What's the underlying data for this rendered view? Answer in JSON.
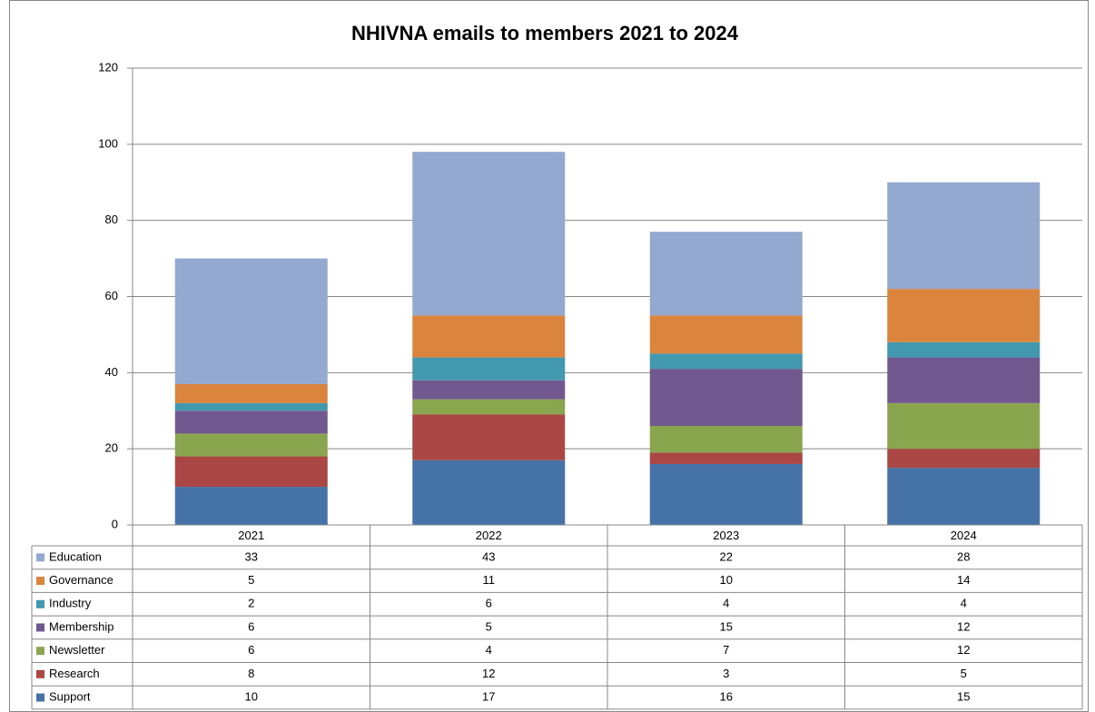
{
  "chart_data": {
    "type": "stacked_bar",
    "title": "NHIVNA emails to members 2021 to 2024",
    "categories": [
      "2021",
      "2022",
      "2023",
      "2024"
    ],
    "series": [
      {
        "name": "Support",
        "color": "#4572a7",
        "values": [
          10,
          17,
          16,
          15
        ]
      },
      {
        "name": "Research",
        "color": "#aa4643",
        "values": [
          8,
          12,
          3,
          5
        ]
      },
      {
        "name": "Newsletter",
        "color": "#89a54e",
        "values": [
          6,
          4,
          7,
          12
        ]
      },
      {
        "name": "Membership",
        "color": "#71588f",
        "values": [
          6,
          5,
          15,
          12
        ]
      },
      {
        "name": "Industry",
        "color": "#4198af",
        "values": [
          2,
          6,
          4,
          4
        ]
      },
      {
        "name": "Governance",
        "color": "#db843d",
        "values": [
          5,
          11,
          10,
          14
        ]
      },
      {
        "name": "Education",
        "color": "#93a9cf",
        "values": [
          33,
          43,
          22,
          28
        ]
      }
    ],
    "ylim": [
      0,
      120
    ],
    "yticks": [
      0,
      20,
      40,
      60,
      80,
      100,
      120
    ],
    "grid": true,
    "data_table": true
  }
}
